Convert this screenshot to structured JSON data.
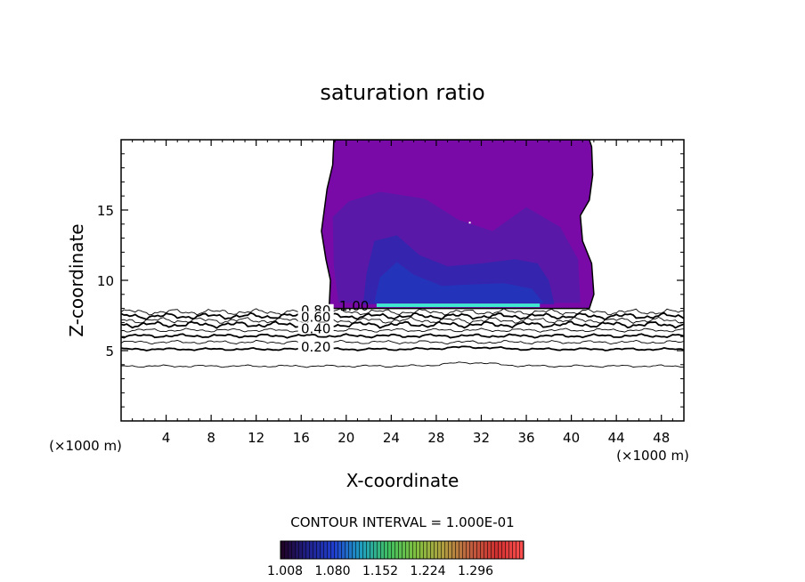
{
  "chart_data": {
    "type": "contour",
    "title": "saturation ratio",
    "xlabel": "X-coordinate",
    "ylabel": "Z-coordinate",
    "x_unit_left": "(×1000 m)",
    "x_unit_right": "(×1000 m)",
    "xlim": [
      0,
      50
    ],
    "ylim": [
      0,
      20
    ],
    "xticks": [
      4,
      8,
      12,
      16,
      20,
      24,
      28,
      32,
      36,
      40,
      44,
      48
    ],
    "yticks": [
      5,
      10,
      15
    ],
    "contour_interval_text": "CONTOUR INTERVAL = 1.000E-01",
    "contour_labels": [
      {
        "text": "1.00",
        "x": 20.7,
        "z": 8.1
      },
      {
        "text": "0.80",
        "x": 17.3,
        "z": 7.8
      },
      {
        "text": "0.60",
        "x": 17.3,
        "z": 7.3
      },
      {
        "text": "0.40",
        "x": 17.3,
        "z": 6.5
      },
      {
        "text": "0.20",
        "x": 17.3,
        "z": 5.2
      }
    ],
    "contour_levels": [
      {
        "level": 0.9,
        "base_z": 7.75,
        "weight": "thin"
      },
      {
        "level": 0.8,
        "base_z": 7.45,
        "weight": "thick"
      },
      {
        "level": 0.7,
        "base_z": 7.15,
        "weight": "thin"
      },
      {
        "level": 0.6,
        "base_z": 6.85,
        "weight": "thick"
      },
      {
        "level": 0.5,
        "base_z": 6.45,
        "weight": "thin"
      },
      {
        "level": 0.4,
        "base_z": 6.05,
        "weight": "thick"
      },
      {
        "level": 0.3,
        "base_z": 5.6,
        "weight": "thin"
      },
      {
        "level": 0.2,
        "base_z": 5.1,
        "weight": "thick"
      },
      {
        "level": 0.1,
        "base_z": 3.9,
        "weight": "thin"
      }
    ],
    "supersaturated_region": {
      "x_range": [
        18.3,
        41.8
      ],
      "z_range": [
        8.0,
        20
      ],
      "color_outer": "#7a0aa8",
      "color_mid": "#5a18a8",
      "color_inner": "#2a28b0",
      "core_band_color": "#40e8d0"
    },
    "colorbar": {
      "tick_labels": [
        "1.008",
        "1.080",
        "1.152",
        "1.224",
        "1.296"
      ],
      "stops": [
        "#200020",
        "#20208a",
        "#2040d0",
        "#20a0c0",
        "#40c060",
        "#80c040",
        "#b0a040",
        "#c06040",
        "#d03030",
        "#ff5050"
      ]
    }
  }
}
